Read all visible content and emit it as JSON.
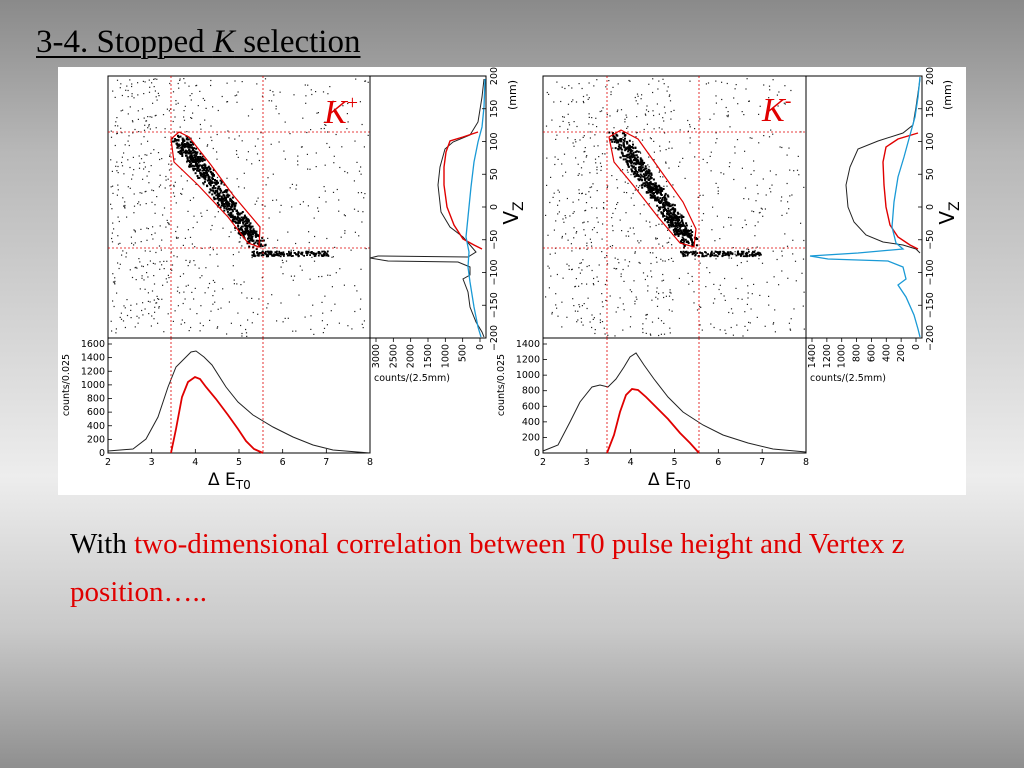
{
  "slide": {
    "title_prefix": "3-4. Stopped ",
    "title_italic": "K",
    "title_suffix": " selection",
    "caption_black": "With ",
    "caption_red": "two-dimensional correlation between T0 pulse height and Vertex z position…..",
    "colors": {
      "accent_red": "#e00000",
      "histogram_blue": "#1a9ad6",
      "histogram_red": "#e00000",
      "histogram_black": "#222222"
    }
  },
  "panels": [
    {
      "id": "kplus",
      "particle_label": "K",
      "charge_sign": "+",
      "vz_label": "V",
      "vz_sub": "Z",
      "vz_unit": "(mm)",
      "vz_ticks": [
        "200",
        "150",
        "100",
        "50",
        "0",
        "−50",
        "−100",
        "−150",
        "−200"
      ],
      "counts_ticks": [
        "3000",
        "2500",
        "2000",
        "1500",
        "1000",
        "500",
        "0"
      ],
      "counts_xlabel": "counts/(2.5mm)",
      "etick_labels": [
        "2",
        "3",
        "4",
        "5",
        "6",
        "7",
        "8"
      ],
      "y_ticks": [
        "1600",
        "1400",
        "1200",
        "1000",
        "800",
        "600",
        "400",
        "200",
        "0"
      ],
      "ylabel": "counts/0.025",
      "xlabel_delta": "Δ E",
      "xlabel_sub": "T0"
    },
    {
      "id": "kminus",
      "particle_label": "K",
      "charge_sign": "-",
      "vz_label": "V",
      "vz_sub": "Z",
      "vz_unit": "(mm)",
      "vz_ticks": [
        "200",
        "150",
        "100",
        "50",
        "0",
        "−50",
        "−100",
        "−150",
        "−200"
      ],
      "counts_ticks": [
        "1400",
        "1200",
        "1000",
        "800",
        "600",
        "400",
        "200",
        "0"
      ],
      "counts_xlabel": "counts/(2.5mm)",
      "etick_labels": [
        "2",
        "3",
        "4",
        "5",
        "6",
        "7",
        "8"
      ],
      "y_ticks": [
        "1400",
        "1200",
        "1000",
        "800",
        "600",
        "400",
        "200",
        "0"
      ],
      "ylabel": "counts/0.025",
      "xlabel_delta": "Δ E",
      "xlabel_sub": "T0"
    }
  ]
}
